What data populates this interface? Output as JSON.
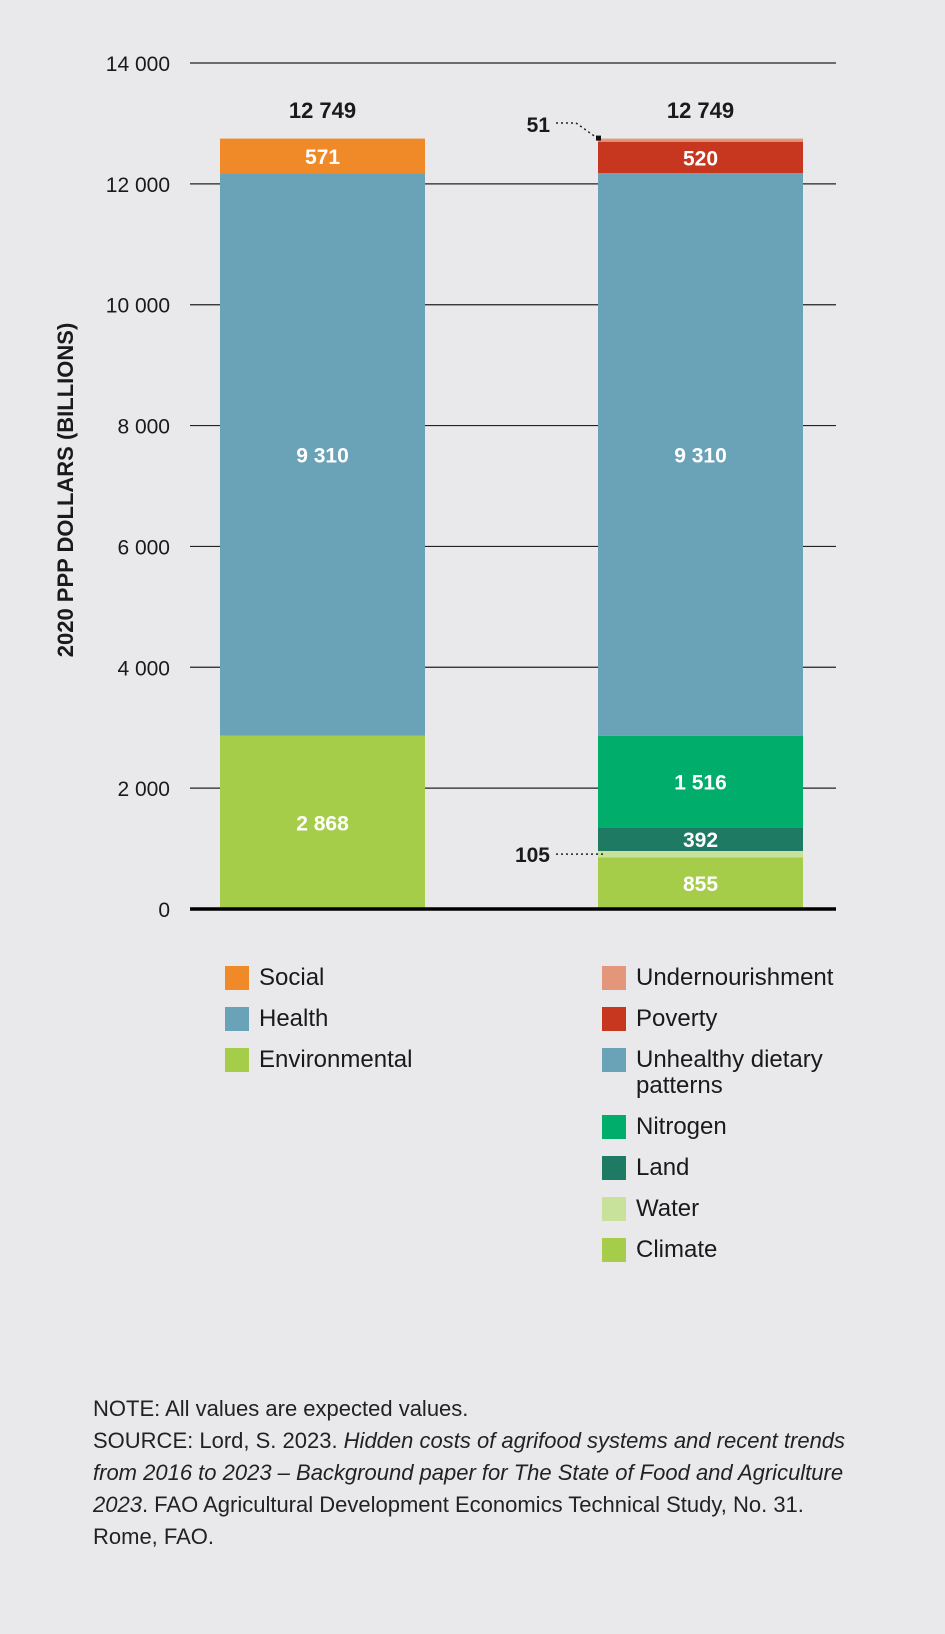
{
  "chart_data": {
    "type": "bar",
    "stacked": true,
    "ylabel": "2020 PPP DOLLARS (BILLIONS)",
    "ylim": [
      0,
      14000
    ],
    "yticks": [
      0,
      2000,
      4000,
      6000,
      8000,
      10000,
      12000,
      14000
    ],
    "ytick_labels": [
      "0",
      "2 000",
      "4 000",
      "6 000",
      "8 000",
      "10 000",
      "12 000",
      "14 000"
    ],
    "grid": true,
    "bars": [
      {
        "total": 12749,
        "total_label": "12 749",
        "segments": [
          {
            "name": "Environmental",
            "value": 2868,
            "label": "2 868",
            "color": "#a6cd4a"
          },
          {
            "name": "Health",
            "value": 9310,
            "label": "9 310",
            "color": "#6aa3b8"
          },
          {
            "name": "Social",
            "value": 571,
            "label": "571",
            "color": "#f08a28"
          }
        ]
      },
      {
        "total": 12749,
        "total_label": "12 749",
        "segments": [
          {
            "name": "Climate",
            "value": 855,
            "label": "855",
            "color": "#a6cd4a"
          },
          {
            "name": "Water",
            "value": 105,
            "label": "105",
            "color": "#c8e29c",
            "callout": true
          },
          {
            "name": "Land",
            "value": 392,
            "label": "392",
            "color": "#1e7a62"
          },
          {
            "name": "Nitrogen",
            "value": 1516,
            "label": "1 516",
            "color": "#00ad6b"
          },
          {
            "name": "Unhealthy dietary patterns",
            "value": 9310,
            "label": "9 310",
            "color": "#6aa3b8"
          },
          {
            "name": "Poverty",
            "value": 520,
            "label": "520",
            "color": "#c7361f"
          },
          {
            "name": "Undernourishment",
            "value": 51,
            "label": "51",
            "color": "#e3967a",
            "callout": true
          }
        ]
      }
    ]
  },
  "legend_left": [
    {
      "label": "Social",
      "color": "#f08a28"
    },
    {
      "label": "Health",
      "color": "#6aa3b8"
    },
    {
      "label": "Environmental",
      "color": "#a6cd4a"
    }
  ],
  "legend_right": [
    {
      "label": "Undernourishment",
      "color": "#e3967a"
    },
    {
      "label": "Poverty",
      "color": "#c7361f"
    },
    {
      "label": "Unhealthy dietary patterns",
      "color": "#6aa3b8"
    },
    {
      "label": "Nitrogen",
      "color": "#00ad6b"
    },
    {
      "label": "Land",
      "color": "#1e7a62"
    },
    {
      "label": "Water",
      "color": "#c8e29c"
    },
    {
      "label": "Climate",
      "color": "#a6cd4a"
    }
  ],
  "footer": {
    "note": "NOTE: All values are expected values.",
    "source_prefix": "SOURCE: Lord, S. 2023. ",
    "source_title": "Hidden costs of agrifood systems and recent trends from 2016 to 2023 – Background paper for The State of Food and Agriculture 2023",
    "source_suffix": ". FAO Agricultural Development Economics Technical Study, No. 31. Rome, FAO."
  }
}
